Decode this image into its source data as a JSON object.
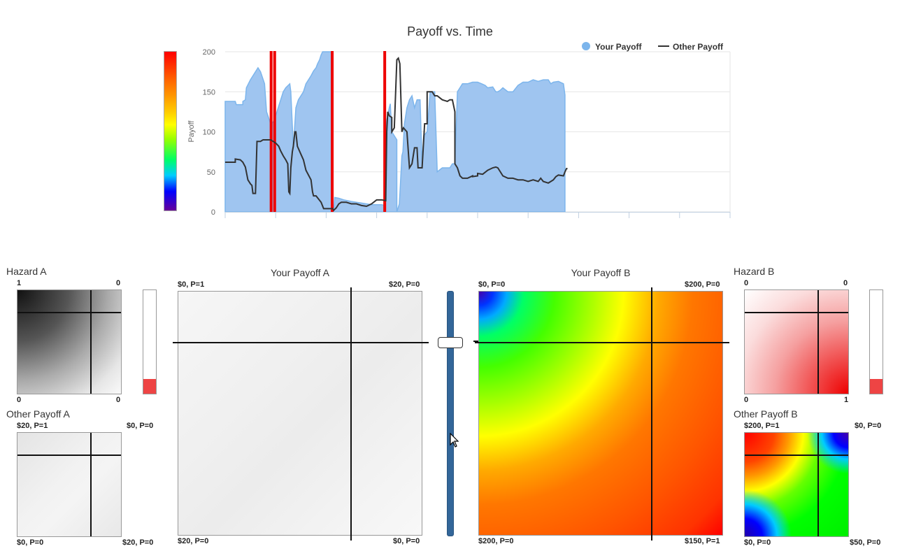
{
  "chart": {
    "title": "Payoff vs. Time",
    "ylabel": "Payoff",
    "legend": {
      "your_payoff": "Your Payoff",
      "other_payoff": "Other Payoff"
    },
    "colors": {
      "your": "#9fc5f0",
      "your_line": "#7cb5ec",
      "other": "#333333",
      "event": "#ee0000"
    }
  },
  "chart_data": {
    "type": "area",
    "title": "Payoff vs. Time",
    "ylabel": "Payoff",
    "ylim": [
      0,
      200
    ],
    "xlim": [
      0,
      100
    ],
    "y_ticks": [
      0,
      50,
      100,
      150,
      200
    ],
    "x_ticks": [
      0,
      10,
      20,
      30,
      40,
      50,
      60,
      70,
      80,
      90,
      100
    ],
    "legend_position": "top-right",
    "grid": true,
    "series": [
      {
        "name": "Your Payoff",
        "style": "area",
        "points": [
          [
            0,
            138
          ],
          [
            2,
            138
          ],
          [
            2.2,
            134
          ],
          [
            3.5,
            134
          ],
          [
            3.5,
            138
          ],
          [
            4,
            140
          ],
          [
            4.2,
            155
          ],
          [
            4.6,
            160
          ],
          [
            5,
            165
          ],
          [
            5.5,
            170
          ],
          [
            6.5,
            180
          ],
          [
            7,
            175
          ],
          [
            7.8,
            160
          ],
          [
            8.2,
            125
          ],
          [
            9,
            110
          ],
          [
            9.5,
            112
          ],
          [
            10,
            120
          ],
          [
            10.5,
            130
          ],
          [
            11,
            140
          ],
          [
            11.5,
            150
          ],
          [
            12,
            155
          ],
          [
            12.8,
            160
          ],
          [
            13,
            150
          ],
          [
            13.5,
            80
          ],
          [
            14,
            130
          ],
          [
            14.5,
            140
          ],
          [
            15,
            145
          ],
          [
            15.5,
            150
          ],
          [
            16,
            160
          ],
          [
            17,
            170
          ],
          [
            17.5,
            176
          ],
          [
            18,
            180
          ],
          [
            18.3,
            185
          ],
          [
            18.7,
            190
          ],
          [
            19,
            196
          ],
          [
            19.3,
            200
          ],
          [
            21.3,
            200
          ],
          [
            21.3,
            0
          ],
          [
            21.5,
            0
          ],
          [
            21.7,
            18
          ],
          [
            22.5,
            17
          ],
          [
            23.5,
            15
          ],
          [
            25,
            13
          ],
          [
            27,
            11
          ],
          [
            29,
            9
          ],
          [
            31,
            9
          ],
          [
            31.6,
            8
          ],
          [
            31.8,
            100
          ],
          [
            32,
            115
          ],
          [
            32.5,
            130
          ],
          [
            32.7,
            135
          ],
          [
            33,
            100
          ],
          [
            34,
            90
          ],
          [
            34,
            0
          ],
          [
            34.5,
            10
          ],
          [
            35,
            70
          ],
          [
            35.2,
            75
          ],
          [
            35.5,
            110
          ],
          [
            36,
            130
          ],
          [
            36.5,
            140
          ],
          [
            37,
            145
          ],
          [
            37.5,
            130
          ],
          [
            38,
            140
          ],
          [
            38.6,
            140
          ],
          [
            39,
            60
          ],
          [
            39.3,
            95
          ],
          [
            40,
            100
          ],
          [
            40.6,
            150
          ],
          [
            41,
            150
          ],
          [
            41.5,
            150
          ],
          [
            42,
            50
          ],
          [
            43,
            55
          ],
          [
            44.5,
            55
          ],
          [
            45,
            60
          ],
          [
            45.5,
            60
          ],
          [
            46,
            150
          ],
          [
            46.5,
            155
          ],
          [
            47,
            160
          ],
          [
            48,
            160
          ],
          [
            49,
            162
          ],
          [
            50,
            162
          ],
          [
            50.8,
            160
          ],
          [
            51.5,
            158
          ],
          [
            52,
            155
          ],
          [
            53,
            156
          ],
          [
            53.6,
            150
          ],
          [
            54,
            150
          ],
          [
            54.5,
            152
          ],
          [
            55,
            155
          ],
          [
            56,
            150
          ],
          [
            57,
            150
          ],
          [
            58,
            158
          ],
          [
            59,
            162
          ],
          [
            60,
            162
          ],
          [
            61,
            165
          ],
          [
            62,
            163
          ],
          [
            63,
            165
          ],
          [
            64,
            165
          ],
          [
            64.5,
            160
          ],
          [
            65,
            162
          ],
          [
            66,
            163
          ],
          [
            67,
            160
          ],
          [
            67.3,
            146
          ],
          [
            67.3,
            0
          ]
        ]
      },
      {
        "name": "Other Payoff",
        "style": "line",
        "points": [
          [
            0,
            62
          ],
          [
            2,
            62
          ],
          [
            2,
            66
          ],
          [
            3,
            65
          ],
          [
            3.5,
            62
          ],
          [
            4,
            56
          ],
          [
            4.5,
            40
          ],
          [
            5,
            35
          ],
          [
            5.3,
            33
          ],
          [
            5.5,
            23
          ],
          [
            6,
            23
          ],
          [
            6.3,
            88
          ],
          [
            7,
            88
          ],
          [
            7.5,
            90
          ],
          [
            8,
            90
          ],
          [
            8.5,
            90
          ],
          [
            9,
            90
          ],
          [
            10,
            86
          ],
          [
            10.6,
            82
          ],
          [
            11,
            76
          ],
          [
            11.5,
            70
          ],
          [
            12,
            65
          ],
          [
            12.4,
            60
          ],
          [
            12.6,
            25
          ],
          [
            12.8,
            23
          ],
          [
            13,
            55
          ],
          [
            13.3,
            75
          ],
          [
            13.5,
            82
          ],
          [
            13.8,
            100
          ],
          [
            14,
            100
          ],
          [
            14.3,
            82
          ],
          [
            15,
            72
          ],
          [
            15.5,
            65
          ],
          [
            16,
            52
          ],
          [
            17,
            40
          ],
          [
            17.3,
            25
          ],
          [
            17.5,
            20
          ],
          [
            18,
            20
          ],
          [
            19,
            12
          ],
          [
            19.5,
            4
          ],
          [
            20,
            4
          ],
          [
            21.3,
            4
          ],
          [
            21.5,
            2
          ],
          [
            22,
            5
          ],
          [
            22.5,
            10
          ],
          [
            23,
            12
          ],
          [
            24,
            12
          ],
          [
            25,
            10
          ],
          [
            26,
            10
          ],
          [
            27,
            8
          ],
          [
            28,
            7
          ],
          [
            29,
            10
          ],
          [
            30,
            15
          ],
          [
            31,
            15
          ],
          [
            31.8,
            14
          ],
          [
            32,
            100
          ],
          [
            32.2,
            125
          ],
          [
            32.5,
            120
          ],
          [
            33,
            118
          ],
          [
            33,
            100
          ],
          [
            33.5,
            105
          ],
          [
            34,
            190
          ],
          [
            34.3,
            192
          ],
          [
            34.6,
            185
          ],
          [
            35,
            100
          ],
          [
            35.3,
            105
          ],
          [
            36,
            100
          ],
          [
            36.5,
            55
          ],
          [
            37,
            60
          ],
          [
            37.5,
            80
          ],
          [
            38,
            80
          ],
          [
            38.2,
            55
          ],
          [
            39,
            55
          ],
          [
            39.5,
            110
          ],
          [
            40,
            110
          ],
          [
            40,
            150
          ],
          [
            40.6,
            150
          ],
          [
            41,
            150
          ],
          [
            41.5,
            145
          ],
          [
            42,
            145
          ],
          [
            43,
            140
          ],
          [
            44,
            138
          ],
          [
            44.5,
            140
          ],
          [
            45,
            140
          ],
          [
            45.5,
            125
          ],
          [
            45.5,
            60
          ],
          [
            46,
            55
          ],
          [
            46.5,
            45
          ],
          [
            47,
            42
          ],
          [
            48,
            42
          ],
          [
            49,
            45
          ],
          [
            49,
            44
          ],
          [
            50,
            45
          ],
          [
            50,
            48
          ],
          [
            51,
            47
          ],
          [
            52,
            52
          ],
          [
            53,
            55
          ],
          [
            53.6,
            56
          ],
          [
            54,
            55
          ],
          [
            54.5,
            50
          ],
          [
            55,
            45
          ],
          [
            56,
            42
          ],
          [
            57,
            42
          ],
          [
            58,
            40
          ],
          [
            59,
            40
          ],
          [
            60,
            38
          ],
          [
            61,
            40
          ],
          [
            62,
            38
          ],
          [
            62.5,
            42
          ],
          [
            63,
            38
          ],
          [
            64,
            36
          ],
          [
            65,
            40
          ],
          [
            65.5,
            44
          ],
          [
            66,
            46
          ],
          [
            67,
            45
          ],
          [
            67.3,
            50
          ],
          [
            67.6,
            54
          ],
          [
            67.8,
            54
          ]
        ]
      }
    ],
    "event_markers_x": [
      9.1,
      9.8,
      21.2,
      31.6
    ]
  },
  "legend_bar": {
    "colors": [
      "#ff0000",
      "#ff9900",
      "#ffff00",
      "#00ff00",
      "#00aaff",
      "#0000ff",
      "#660099"
    ]
  },
  "hazard_a": {
    "title": "Hazard A",
    "corners": {
      "tl": "1",
      "tr": "0",
      "bl": "0",
      "br": "0"
    },
    "crosshair": {
      "x": 0.71,
      "y": 0.22
    },
    "vertical_level": 0.15
  },
  "other_payoff_a": {
    "title": "Other Payoff A",
    "corners": {
      "tl": "$20, P=1",
      "tr": "$0, P=0",
      "bl": "$0, P=0",
      "br": "$20, P=0"
    },
    "crosshair": {
      "x": 0.71,
      "y": 0.22
    }
  },
  "your_payoff_a": {
    "title": "Your Payoff A",
    "corners": {
      "tl": "$0, P=1",
      "tr": "$20, P=0",
      "bl": "$20, P=0",
      "br": "$0, P=0"
    },
    "crosshair": {
      "x": 0.71,
      "y": 0.21
    }
  },
  "your_payoff_b": {
    "title": "Your Payoff B",
    "corners": {
      "tl": "$0, P=0",
      "tr": "$200, P=0",
      "bl": "$200, P=0",
      "br": "$150, P=1"
    },
    "crosshair": {
      "x": 0.71,
      "y": 0.21
    }
  },
  "hazard_b": {
    "title": "Hazard B",
    "corners": {
      "tl": "0",
      "tr": "0",
      "bl": "0",
      "br": "1"
    },
    "crosshair": {
      "x": 0.71,
      "y": 0.22
    },
    "vertical_level": 0.15
  },
  "other_payoff_b": {
    "title": "Other Payoff B",
    "corners": {
      "tl": "$200, P=1",
      "tr": "$0, P=0",
      "bl": "$0, P=0",
      "br": "$50, P=0"
    },
    "crosshair": {
      "x": 0.71,
      "y": 0.22
    }
  },
  "slider": {
    "value": 0.8,
    "color": "#336699"
  }
}
